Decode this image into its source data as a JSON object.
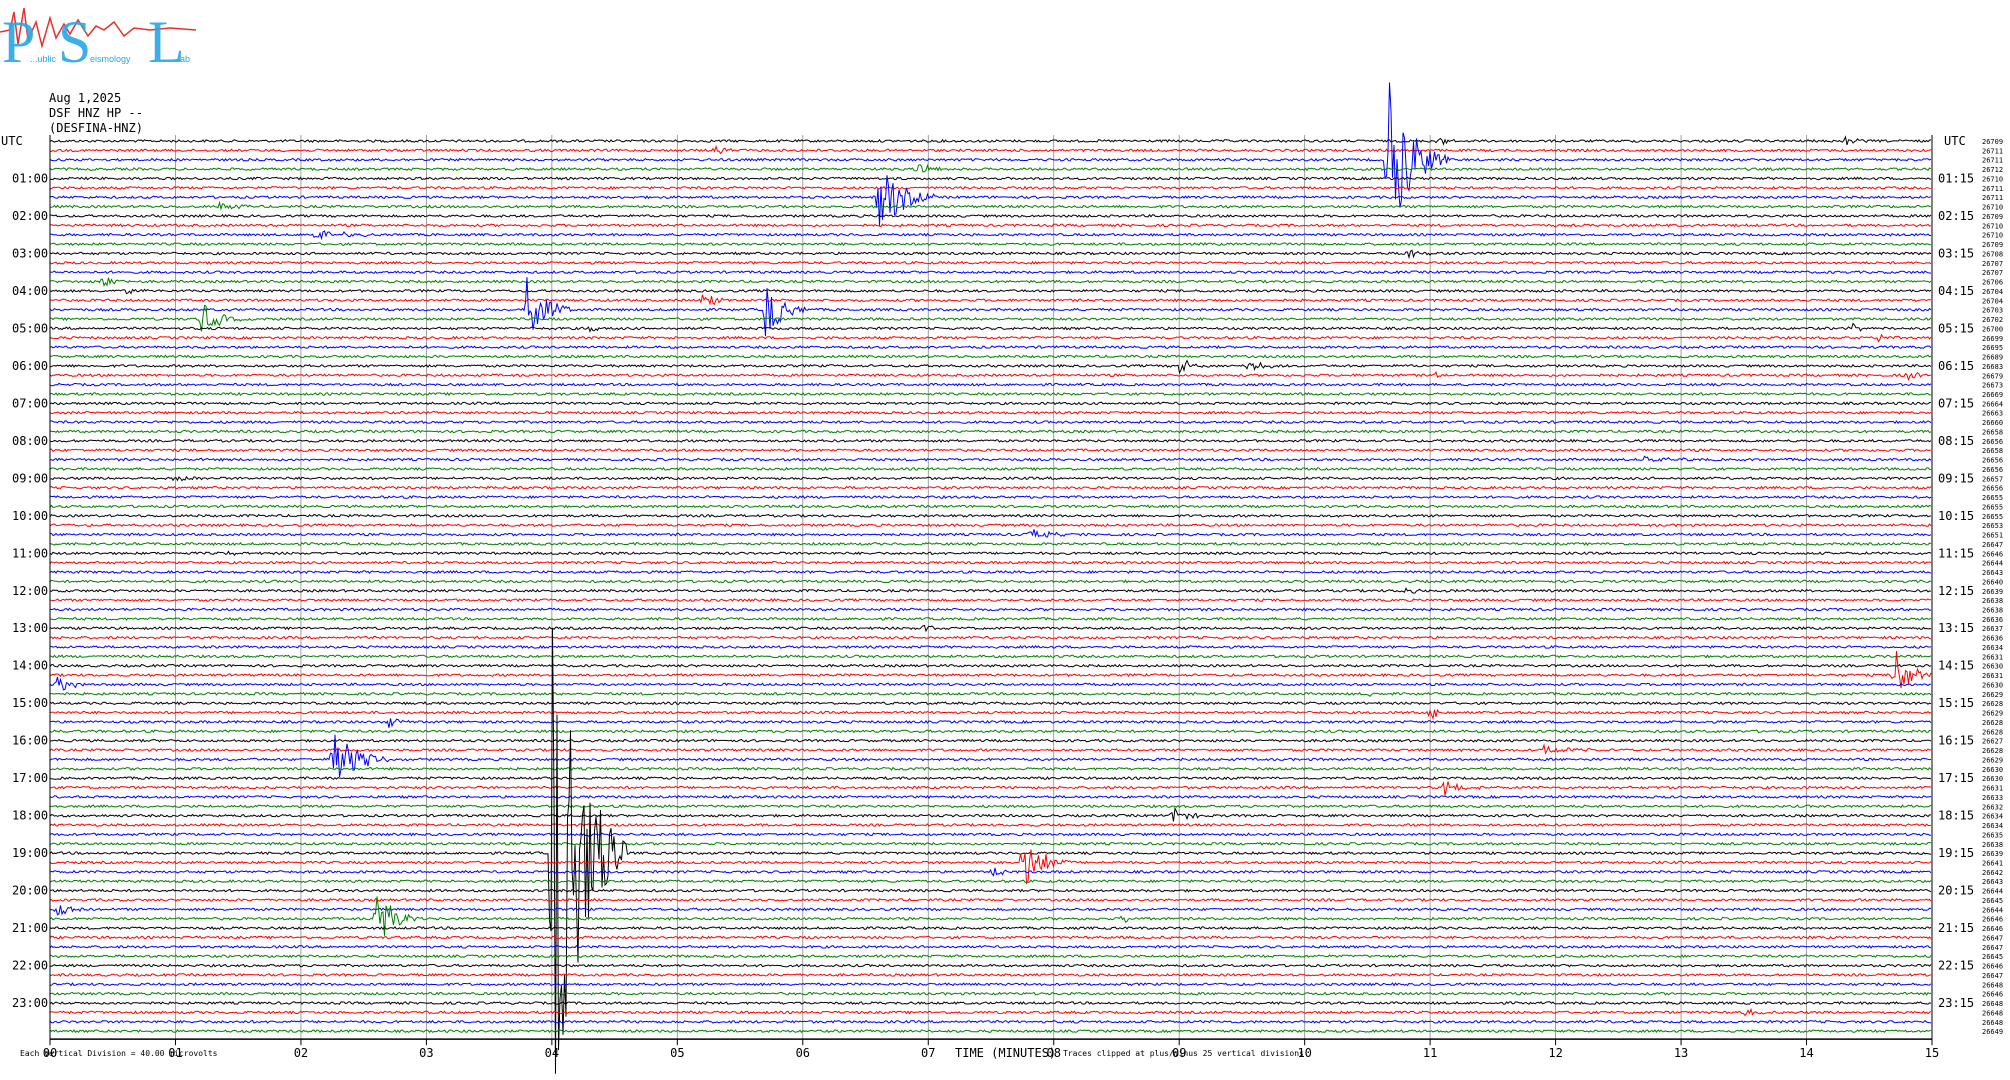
{
  "logo": {
    "big_letters": [
      "P",
      "S",
      "L"
    ],
    "small_words": [
      "...ublic",
      "eismology",
      "ab"
    ],
    "colors": {
      "letters": "#2aa6e8",
      "wave": "#e8302a"
    }
  },
  "header": {
    "date": "Aug 1,2025",
    "station": "DSF HNZ HP --",
    "station_code": "(DESFINA-HNZ)"
  },
  "chart_data": {
    "type": "line",
    "subtype": "helicorder",
    "left_axis_label": "UTC",
    "right_axis_label": "UTC",
    "left_hour_labels": [
      "01:00",
      "02:00",
      "03:00",
      "04:00",
      "05:00",
      "06:00",
      "07:00",
      "08:00",
      "09:00",
      "10:00",
      "11:00",
      "12:00",
      "13:00",
      "14:00",
      "15:00",
      "16:00",
      "17:00",
      "18:00",
      "19:00",
      "20:00",
      "21:00",
      "22:00",
      "23:00"
    ],
    "right_hour_labels": [
      "01:15",
      "02:15",
      "03:15",
      "04:15",
      "05:15",
      "06:15",
      "07:15",
      "08:15",
      "09:15",
      "10:15",
      "11:15",
      "12:15",
      "13:15",
      "14:15",
      "15:15",
      "16:15",
      "17:15",
      "18:15",
      "19:15",
      "20:15",
      "21:15",
      "22:15",
      "23:15"
    ],
    "x_ticks": [
      "00",
      "01",
      "02",
      "03",
      "04",
      "05",
      "06",
      "07",
      "08",
      "09",
      "10",
      "11",
      "12",
      "13",
      "14",
      "15"
    ],
    "xlim": [
      0,
      15
    ],
    "xlabel": "TIME (MINUTES)",
    "trace_minutes": 15,
    "trace_count": 96,
    "trace_colors": [
      "#000000",
      "#ff0000",
      "#0000ff",
      "#008000"
    ],
    "grid": true,
    "right_counts": [
      "26709",
      "26711",
      "26711",
      "26712",
      "26710",
      "26711",
      "26711",
      "26710",
      "26709",
      "26710",
      "26710",
      "26709",
      "26708",
      "26707",
      "26707",
      "26706",
      "26704",
      "26704",
      "26703",
      "26702",
      "26700",
      "26699",
      "26695",
      "26689",
      "26683",
      "26679",
      "26673",
      "26669",
      "26664",
      "26663",
      "26660",
      "26658",
      "26656",
      "26658",
      "26656",
      "26656",
      "26657",
      "26656",
      "26655",
      "26655",
      "26655",
      "26653",
      "26651",
      "26647",
      "26646",
      "26644",
      "26643",
      "26640",
      "26639",
      "26638",
      "26638",
      "26636",
      "26637",
      "26636",
      "26634",
      "26631",
      "26630",
      "26631",
      "26630",
      "26629",
      "26628",
      "26629",
      "26628",
      "26628",
      "26627",
      "26628",
      "26629",
      "26630",
      "26630",
      "26631",
      "26633",
      "26632",
      "26634",
      "26634",
      "26635",
      "26638",
      "26639",
      "26641",
      "26642",
      "26643",
      "26644",
      "26645",
      "26644",
      "26646",
      "26646",
      "26647",
      "26647",
      "26645",
      "26646",
      "26647",
      "26648",
      "26646",
      "26648",
      "26648",
      "26648",
      "26649"
    ],
    "events": [
      {
        "trace": 1,
        "minute": 5.3,
        "amp": 5,
        "dur": 0.25
      },
      {
        "trace": 3,
        "minute": 6.9,
        "amp": 8,
        "dur": 0.3
      },
      {
        "trace": 2,
        "minute": 10.65,
        "amp": 90,
        "dur": 0.5
      },
      {
        "trace": 0,
        "minute": 11.05,
        "amp": 5,
        "dur": 0.2
      },
      {
        "trace": 0,
        "minute": 14.3,
        "amp": 5,
        "dur": 0.2
      },
      {
        "trace": 6,
        "minute": 6.6,
        "amp": 42,
        "dur": 0.45
      },
      {
        "trace": 7,
        "minute": 1.35,
        "amp": 5,
        "dur": 0.3
      },
      {
        "trace": 10,
        "minute": 2.1,
        "amp": 6,
        "dur": 0.6
      },
      {
        "trace": 12,
        "minute": 10.8,
        "amp": 7,
        "dur": 0.3
      },
      {
        "trace": 15,
        "minute": 0.4,
        "amp": 6,
        "dur": 0.3
      },
      {
        "trace": 16,
        "minute": 0.6,
        "amp": 4,
        "dur": 0.2
      },
      {
        "trace": 18,
        "minute": 3.8,
        "amp": 38,
        "dur": 0.35
      },
      {
        "trace": 17,
        "minute": 5.2,
        "amp": 12,
        "dur": 0.25
      },
      {
        "trace": 18,
        "minute": 5.7,
        "amp": 32,
        "dur": 0.35
      },
      {
        "trace": 19,
        "minute": 1.2,
        "amp": 18,
        "dur": 0.35
      },
      {
        "trace": 20,
        "minute": 4.3,
        "amp": 5,
        "dur": 0.2
      },
      {
        "trace": 20,
        "minute": 14.35,
        "amp": 5,
        "dur": 0.2
      },
      {
        "trace": 21,
        "minute": 14.55,
        "amp": 6,
        "dur": 0.2
      },
      {
        "trace": 24,
        "minute": 9.0,
        "amp": 10,
        "dur": 0.25
      },
      {
        "trace": 24,
        "minute": 9.55,
        "amp": 8,
        "dur": 0.3
      },
      {
        "trace": 25,
        "minute": 11.0,
        "amp": 5,
        "dur": 0.2
      },
      {
        "trace": 25,
        "minute": 14.8,
        "amp": 6,
        "dur": 0.2
      },
      {
        "trace": 34,
        "minute": 12.7,
        "amp": 6,
        "dur": 0.4
      },
      {
        "trace": 36,
        "minute": 1.0,
        "amp": 5,
        "dur": 0.25
      },
      {
        "trace": 42,
        "minute": 7.8,
        "amp": 6,
        "dur": 0.4
      },
      {
        "trace": 44,
        "minute": 1.4,
        "amp": 4,
        "dur": 0.2
      },
      {
        "trace": 48,
        "minute": 10.8,
        "amp": 5,
        "dur": 0.2
      },
      {
        "trace": 52,
        "minute": 6.95,
        "amp": 5,
        "dur": 0.2
      },
      {
        "trace": 57,
        "minute": 14.7,
        "amp": 30,
        "dur": 0.3
      },
      {
        "trace": 58,
        "minute": 0.05,
        "amp": 10,
        "dur": 0.25
      },
      {
        "trace": 59,
        "minute": 10.5,
        "amp": 5,
        "dur": 0.2
      },
      {
        "trace": 61,
        "minute": 11.0,
        "amp": 7,
        "dur": 0.2
      },
      {
        "trace": 62,
        "minute": 2.7,
        "amp": 7,
        "dur": 0.2
      },
      {
        "trace": 65,
        "minute": 11.9,
        "amp": 5,
        "dur": 0.5
      },
      {
        "trace": 66,
        "minute": 2.25,
        "amp": 36,
        "dur": 0.45
      },
      {
        "trace": 69,
        "minute": 11.1,
        "amp": 8,
        "dur": 0.35
      },
      {
        "trace": 72,
        "minute": 8.95,
        "amp": 9,
        "dur": 0.3
      },
      {
        "trace": 74,
        "minute": 4.3,
        "amp": 4,
        "dur": 0.2
      },
      {
        "trace": 77,
        "minute": 7.75,
        "amp": 30,
        "dur": 0.4
      },
      {
        "trace": 76,
        "minute": 4.0,
        "amp": 300,
        "dur": 0.6
      },
      {
        "trace": 78,
        "minute": 7.5,
        "amp": 8,
        "dur": 0.2
      },
      {
        "trace": 82,
        "minute": 0.05,
        "amp": 10,
        "dur": 0.25
      },
      {
        "trace": 83,
        "minute": 2.6,
        "amp": 32,
        "dur": 0.35
      },
      {
        "trace": 83,
        "minute": 8.55,
        "amp": 6,
        "dur": 0.2
      },
      {
        "trace": 93,
        "minute": 13.5,
        "amp": 5,
        "dur": 0.2
      }
    ]
  },
  "footer": {
    "left_note": "Each Vertical Division =   40.00 microvolts",
    "right_note": "Traces clipped at plus/minus 25 vertical divisions"
  }
}
